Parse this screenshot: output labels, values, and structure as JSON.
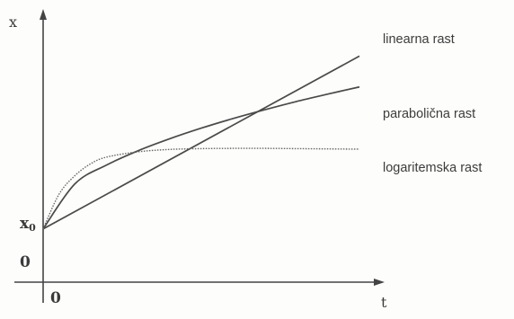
{
  "chart_data": {
    "type": "line",
    "title": "",
    "xlabel": "t",
    "ylabel": "x",
    "y_ticks": {
      "origin": "0",
      "x0_base": "x",
      "x0_sub": "0"
    },
    "x_ticks": {
      "origin": "0"
    },
    "xlim": [
      0,
      10
    ],
    "ylim": [
      0,
      10
    ],
    "grid": false,
    "legend": "inline-right",
    "series": [
      {
        "name": "linearna rast",
        "style": "solid",
        "x": [
          0,
          10
        ],
        "y": [
          2.0,
          8.5
        ]
      },
      {
        "name": "parabolična rast",
        "style": "solid",
        "x": [
          0,
          1,
          2,
          3,
          4,
          5,
          6,
          7,
          8,
          9,
          10
        ],
        "y": [
          2.0,
          3.69,
          4.4,
          4.94,
          5.39,
          5.79,
          6.15,
          6.48,
          6.79,
          7.07,
          7.34
        ]
      },
      {
        "name": "logaritemska rast",
        "style": "dotted",
        "x": [
          0,
          0.5,
          1,
          1.5,
          2,
          3,
          4,
          5,
          6,
          7,
          8,
          9,
          10
        ],
        "y": [
          2.0,
          3.3,
          4.0,
          4.45,
          4.7,
          4.9,
          4.99,
          5.02,
          5.03,
          5.03,
          5.02,
          5.01,
          5.0
        ]
      }
    ]
  }
}
